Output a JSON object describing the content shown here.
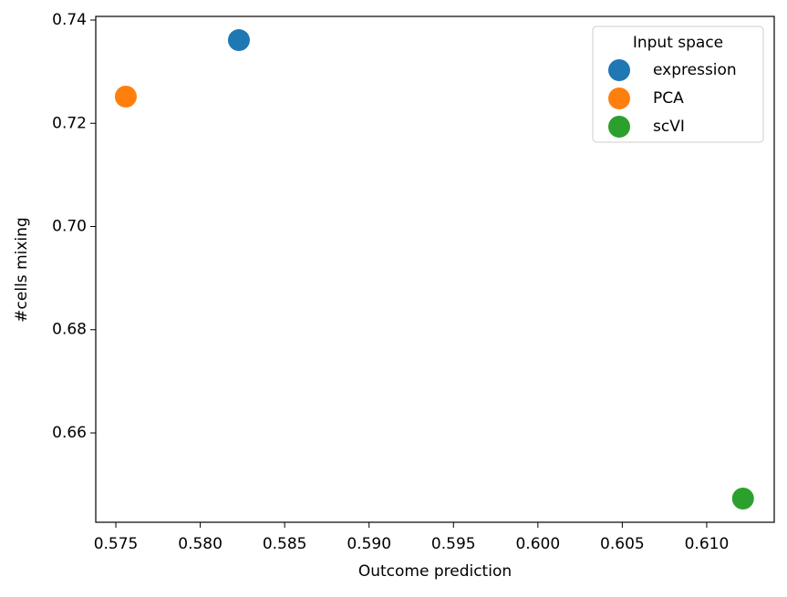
{
  "chart_data": {
    "type": "scatter",
    "x_label": "Outcome prediction",
    "y_label": "#cells mixing",
    "legend_title": "Input space",
    "legend": "upper right",
    "series": [
      {
        "name": "expression",
        "color": "#1f77b4",
        "x": [
          0.58229
        ],
        "values": [
          0.73611
        ]
      },
      {
        "name": "PCA",
        "color": "#ff7f0e",
        "x": [
          0.57559
        ],
        "values": [
          0.72517
        ]
      },
      {
        "name": "scVI",
        "color": "#2ca02c",
        "x": [
          0.61215
        ],
        "values": [
          0.64728
        ]
      }
    ],
    "xlim": [
      0.57381,
      0.614
    ],
    "ylim": [
      0.64269,
      0.74071
    ],
    "xticks": [
      0.575,
      {
        "value": 0.58,
        "label": "0.580"
      },
      0.585,
      {
        "value": 0.59,
        "label": "0.590"
      },
      0.595,
      {
        "value": 0.6,
        "label": "0.600"
      },
      0.605,
      {
        "value": 0.61,
        "label": "0.610"
      }
    ],
    "yticks": [
      0.66,
      0.68,
      {
        "value": 0.7,
        "label": "0.70"
      },
      0.72,
      0.74
    ]
  }
}
